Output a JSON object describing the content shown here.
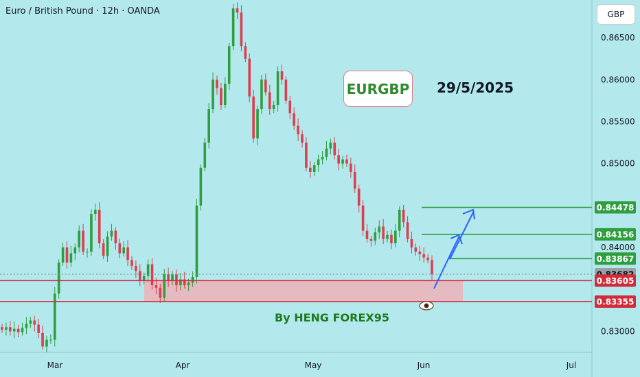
{
  "header": {
    "title": "Euro / British Pound · 12h · OANDA"
  },
  "currency": "GBP",
  "annotations": {
    "symbol": "EURGBP",
    "date": "29/5/2025",
    "author": "By HENG FOREX95",
    "eye_icon": "eye-icon"
  },
  "colors": {
    "background": "#b3e8ec",
    "up_candle": "#2e9e3e",
    "down_candle": "#d9404f",
    "target_line": "#2e9e3e",
    "support_line": "#d12c3b",
    "support_zone": "#eab5bd",
    "arrow": "#2962ff",
    "current_price_badge": "#9aa0a6"
  },
  "chart_data": {
    "type": "candlestick",
    "y_ticks": [
      "0.86500",
      "0.86000",
      "0.85500",
      "0.85000",
      "0.84000",
      "0.83000"
    ],
    "y_tick_values": [
      0.865,
      0.86,
      0.855,
      0.85,
      0.84,
      0.83
    ],
    "x_ticks": [
      "Mar",
      "Apr",
      "May",
      "Jun",
      "Jul"
    ],
    "ylim": [
      0.8275,
      0.8695
    ],
    "price_lines": [
      {
        "label": "0.84478",
        "value": 0.84478,
        "kind": "target"
      },
      {
        "label": "0.84156",
        "value": 0.84156,
        "kind": "target"
      },
      {
        "label": "0.83867",
        "value": 0.83867,
        "kind": "target"
      },
      {
        "label": "0.83682",
        "value": 0.83682,
        "kind": "current"
      },
      {
        "label": "0.83605",
        "value": 0.83605,
        "kind": "support"
      },
      {
        "label": "0.83355",
        "value": 0.83355,
        "kind": "support"
      }
    ],
    "support_zone": [
      0.83355,
      0.83605
    ],
    "close_path": [
      0.8302,
      0.8305,
      0.83,
      0.8303,
      0.8299,
      0.8304,
      0.8309,
      0.8313,
      0.8308,
      0.8298,
      0.8282,
      0.829,
      0.829,
      0.8345,
      0.8382,
      0.84,
      0.8382,
      0.8393,
      0.84,
      0.842,
      0.8395,
      0.8395,
      0.844,
      0.8445,
      0.8405,
      0.839,
      0.8413,
      0.842,
      0.8405,
      0.8393,
      0.84,
      0.8385,
      0.8378,
      0.8372,
      0.836,
      0.8366,
      0.838,
      0.8355,
      0.8352,
      0.834,
      0.8368,
      0.836,
      0.8368,
      0.8355,
      0.8362,
      0.8355,
      0.8358,
      0.8365,
      0.845,
      0.8495,
      0.8525,
      0.8565,
      0.86,
      0.859,
      0.857,
      0.8595,
      0.864,
      0.8685,
      0.868,
      0.864,
      0.8625,
      0.858,
      0.853,
      0.8565,
      0.86,
      0.8585,
      0.8565,
      0.857,
      0.861,
      0.86,
      0.8575,
      0.856,
      0.8545,
      0.8535,
      0.8525,
      0.8495,
      0.849,
      0.8498,
      0.8505,
      0.8508,
      0.8518,
      0.8525,
      0.851,
      0.85,
      0.8505,
      0.85,
      0.849,
      0.847,
      0.845,
      0.842,
      0.841,
      0.8408,
      0.8418,
      0.8425,
      0.841,
      0.8415,
      0.8405,
      0.842,
      0.8445,
      0.843,
      0.841,
      0.84,
      0.8395,
      0.8392,
      0.8388,
      0.8385,
      0.83682
    ]
  }
}
